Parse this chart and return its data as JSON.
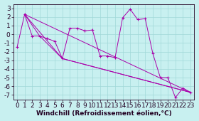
{
  "xlabel": "Windchill (Refroidissement éolien,°C)",
  "background_color": "#c8f0f0",
  "grid_color": "#a0d8d8",
  "line_color": "#aa00aa",
  "xlim": [
    -0.5,
    23.5
  ],
  "ylim": [
    -7.5,
    3.5
  ],
  "xticks": [
    0,
    1,
    2,
    3,
    4,
    5,
    6,
    7,
    8,
    9,
    10,
    11,
    12,
    13,
    14,
    15,
    16,
    17,
    18,
    19,
    20,
    21,
    22,
    23
  ],
  "yticks": [
    -7,
    -6,
    -5,
    -4,
    -3,
    -2,
    -1,
    0,
    1,
    2,
    3
  ],
  "line1_x": [
    0,
    1,
    2,
    3,
    4,
    5,
    6,
    7,
    8,
    9,
    10,
    11,
    12,
    13,
    14,
    15,
    16,
    17,
    18,
    19,
    20,
    21,
    22,
    23
  ],
  "line1_y": [
    -1.5,
    2.3,
    -0.2,
    -0.2,
    -0.5,
    -0.8,
    -2.8,
    0.7,
    0.7,
    0.4,
    0.5,
    -2.5,
    -2.5,
    -2.7,
    1.9,
    2.9,
    1.7,
    1.8,
    -2.2,
    -5.0,
    -5.0,
    -7.3,
    -6.2,
    -6.7
  ],
  "line2_x": [
    1,
    3,
    6,
    23
  ],
  "line2_y": [
    2.3,
    -0.2,
    -2.8,
    -6.7
  ],
  "line3_x": [
    1,
    6,
    23
  ],
  "line3_y": [
    2.3,
    -2.8,
    -6.7
  ],
  "line4_x": [
    1,
    23
  ],
  "line4_y": [
    2.3,
    -6.7
  ],
  "font_size": 6.5,
  "xlabel_fontsize": 6.5
}
